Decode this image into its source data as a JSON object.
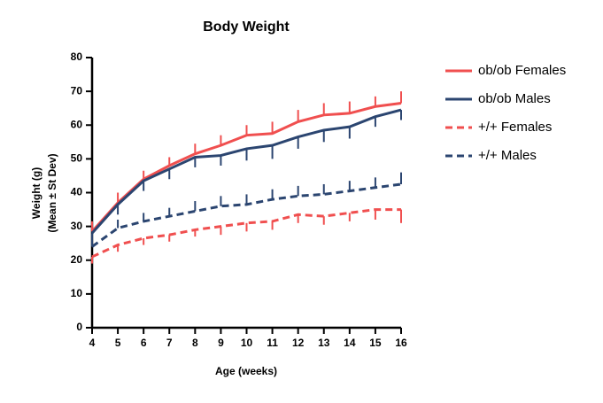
{
  "chart_data": {
    "type": "line",
    "title": "Body Weight",
    "x_label": "Age (weeks)",
    "y_label": [
      "Weight (g)",
      "(Mean ± St Dev)"
    ],
    "x": [
      4,
      5,
      6,
      7,
      8,
      9,
      10,
      11,
      12,
      13,
      14,
      15,
      16
    ],
    "xlim": [
      4,
      16
    ],
    "xticks": [
      4,
      5,
      6,
      7,
      8,
      9,
      10,
      11,
      12,
      13,
      14,
      15,
      16
    ],
    "ylim": [
      0,
      80
    ],
    "yticks": [
      0,
      10,
      20,
      30,
      40,
      50,
      60,
      70,
      80
    ],
    "legend_position": "right",
    "series": [
      {
        "name": "ob/ob Females",
        "color": "#f04f4f",
        "dashed": false,
        "error_direction": "up",
        "values": [
          28.5,
          37,
          44,
          48,
          51.5,
          54,
          57,
          57.5,
          61,
          63,
          63.5,
          65.5,
          66.5
        ],
        "errors": [
          3,
          3,
          2.5,
          2.5,
          3,
          3,
          3,
          3.5,
          3.5,
          3.5,
          3.5,
          3,
          3.5
        ]
      },
      {
        "name": "ob/ob Males",
        "color": "#2b4570",
        "dashed": false,
        "error_direction": "down",
        "values": [
          28,
          36.5,
          43.5,
          47,
          50.5,
          51,
          53,
          54,
          56.5,
          58.5,
          59.5,
          62.5,
          64.5
        ],
        "errors": [
          3,
          3,
          3,
          3,
          3,
          3,
          3.5,
          4,
          3.5,
          3.5,
          3.5,
          3,
          3
        ]
      },
      {
        "name": "+/+ Females",
        "color": "#f04f4f",
        "dashed": true,
        "error_direction": "down",
        "values": [
          21,
          24.5,
          26.5,
          27.5,
          29,
          30,
          31,
          31.5,
          33.5,
          33,
          34,
          35,
          35
        ],
        "errors": [
          2,
          2,
          2,
          2,
          2,
          2.5,
          2.5,
          2.5,
          2.5,
          2.5,
          2.5,
          3,
          4
        ]
      },
      {
        "name": "+/+ Males",
        "color": "#2b4570",
        "dashed": true,
        "error_direction": "up",
        "values": [
          24,
          29.5,
          31.5,
          33,
          34.5,
          36,
          36.5,
          38,
          39,
          39.5,
          40.5,
          41.5,
          42.5
        ],
        "errors": [
          2,
          2.5,
          2.5,
          2.5,
          3,
          3,
          3,
          3,
          3,
          3,
          3,
          3,
          3.5
        ]
      }
    ]
  }
}
